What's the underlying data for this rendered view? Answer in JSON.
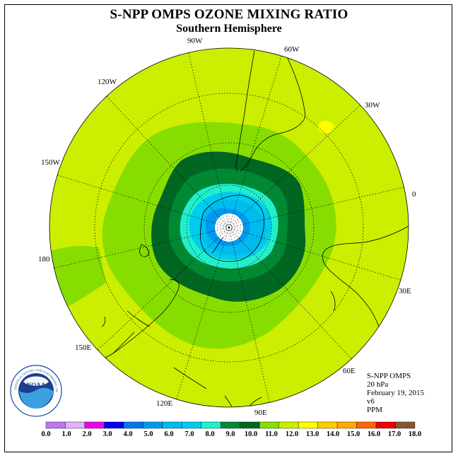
{
  "title": "S-NPP OMPS OZONE MIXING RATIO",
  "subtitle": "Southern Hemisphere",
  "info": {
    "instrument": "S-NPP OMPS",
    "level": "20 hPa",
    "date": "February 19, 2015",
    "version": "v6",
    "units": "PPM"
  },
  "logo": {
    "text": "NOAA",
    "ring_text": "NATIONAL OCEANIC AND ATMOSPHERIC ADMINISTRATION · U.S. DEPARTMENT OF COMMERCE"
  },
  "longitude_labels": [
    "90W",
    "60W",
    "30W",
    "0",
    "30E",
    "60E",
    "90E",
    "120E",
    "150E",
    "180",
    "150W",
    "120W"
  ],
  "colorbar": {
    "ticks": [
      "0.0",
      "1.0",
      "2.0",
      "3.0",
      "4.0",
      "5.0",
      "6.0",
      "7.0",
      "8.0",
      "9.0",
      "10.0",
      "11.0",
      "12.0",
      "13.0",
      "14.0",
      "15.0",
      "16.0",
      "17.0",
      "18.0"
    ],
    "colors": [
      "#bb77ee",
      "#e2b2f6",
      "#ee00ee",
      "#0000ee",
      "#0077ee",
      "#0099ee",
      "#00bbee",
      "#00ccee",
      "#22eecc",
      "#008833",
      "#006622",
      "#88dd00",
      "#ccee00",
      "#ffff00",
      "#ffcc00",
      "#ffaa00",
      "#ff6600",
      "#ee0000",
      "#885533"
    ]
  },
  "map_colors": {
    "background_fill": "#ccee00",
    "band_11": "#88dd00",
    "band_10": "#006622",
    "band_9": "#008833",
    "band_8": "#22eecc",
    "band_7": "#00ccee",
    "band_6": "#00bbee",
    "band_5": "#0099ee",
    "band_13": "#ffff00"
  }
}
